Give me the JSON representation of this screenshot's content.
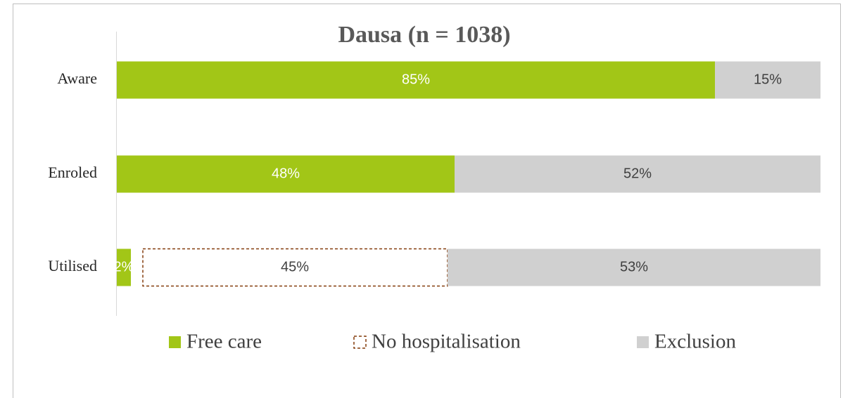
{
  "chart_data": {
    "type": "stacked-barh",
    "title": "Dausa (n = 1038)",
    "categories": [
      "Aware",
      "Enroled",
      "Utilised"
    ],
    "series": [
      {
        "name": "Free care",
        "color": "#a2c617",
        "values": [
          85,
          48,
          2
        ],
        "value_labels": [
          "85%",
          "48%",
          "2%"
        ]
      },
      {
        "name": "No hospitalisation",
        "color": "#843c0c",
        "values": [
          null,
          null,
          45
        ],
        "value_labels": [
          null,
          null,
          "45%"
        ]
      },
      {
        "name": "Exclusion",
        "color": "#d0d0d0",
        "values": [
          15,
          52,
          53
        ],
        "value_labels": [
          "15%",
          "52%",
          "53%"
        ]
      }
    ],
    "xlim": [
      0,
      100
    ],
    "legend": "bottom"
  }
}
